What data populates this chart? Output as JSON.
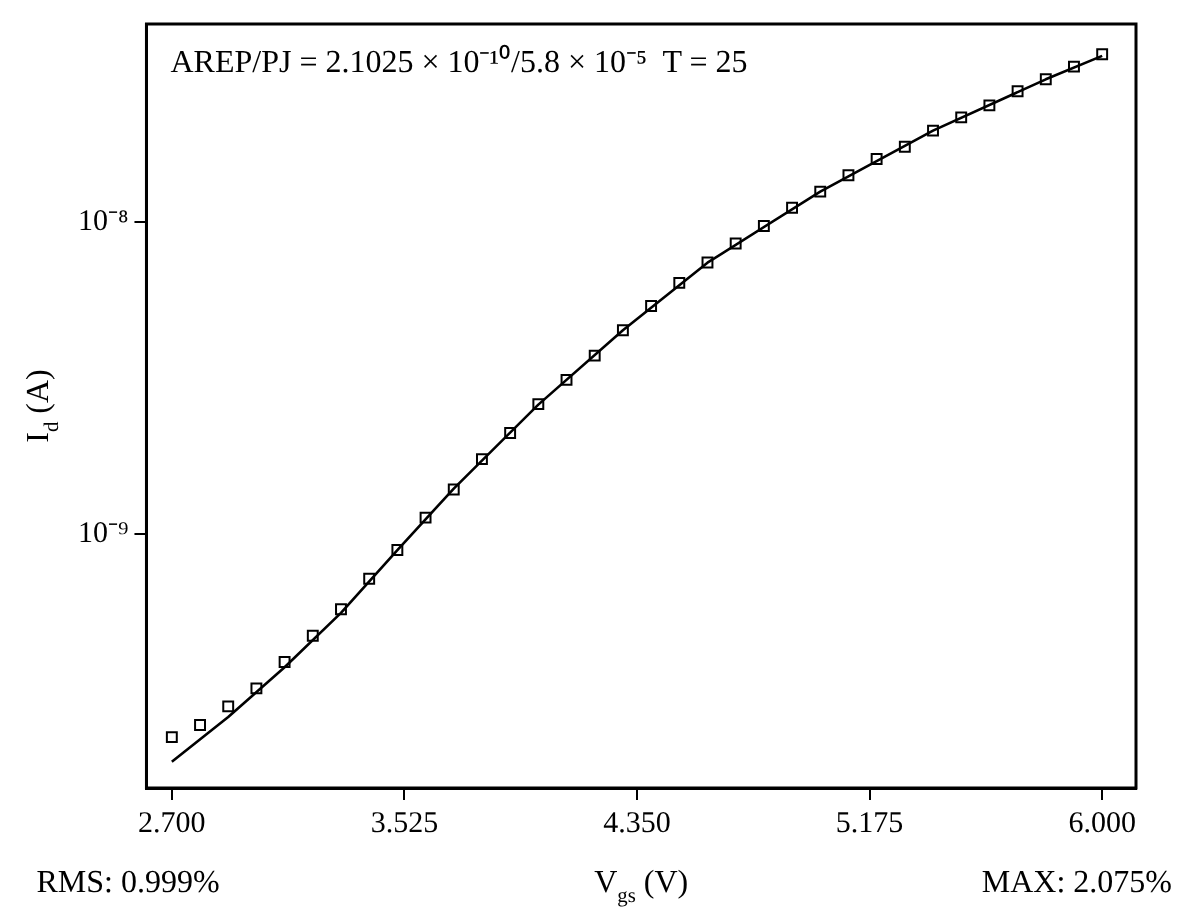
{
  "chart_data": {
    "type": "scatter",
    "xlabel": "V$_{gs}$ (V)",
    "ylabel": "I$_{d}$ (A)",
    "annotations": [
      "AREP/PJ = 2.1025 × 10⁻¹⁰/5.8 × 10⁻⁵  T = 25",
      "RMS: 0.999%",
      "MAX: 2.075%"
    ],
    "x": [
      2.7,
      2.8,
      2.9,
      3.0,
      3.1,
      3.2,
      3.3,
      3.4,
      3.5,
      3.6,
      3.7,
      3.8,
      3.9,
      4.0,
      4.1,
      4.2,
      4.3,
      4.4,
      4.5,
      4.6,
      4.7,
      4.8,
      4.9,
      5.0,
      5.1,
      5.2,
      5.3,
      5.4,
      5.5,
      5.6,
      5.7,
      5.8,
      5.9,
      6.0
    ],
    "series": [
      {
        "color": "#000000",
        "marker": "square",
        "values": [
          2.24e-10,
          2.45e-10,
          2.81e-10,
          3.21e-10,
          3.9e-10,
          4.73e-10,
          5.75e-10,
          7.2e-10,
          8.9e-10,
          1.13e-09,
          1.39e-09,
          1.74e-09,
          2.11e-09,
          2.61e-09,
          3.12e-09,
          3.73e-09,
          4.5e-09,
          5.38e-09,
          6.38e-09,
          7.41e-09,
          8.53e-09,
          9.7e-09,
          1.11e-08,
          1.25e-08,
          1.41e-08,
          1.59e-08,
          1.74e-08,
          1.96e-08,
          2.16e-08,
          2.36e-08,
          2.62e-08,
          2.86e-08,
          3.14e-08,
          3.44e-08
        ]
      },
      {
        "type": "line",
        "color": "#000000",
        "marker": "none",
        "line_style": "solid",
        "x": [
          2.7,
          2.9,
          3.1,
          3.3,
          3.5,
          3.7,
          4.0,
          4.3,
          4.6,
          5.0,
          5.4,
          5.8,
          6.0
        ],
        "values": [
          1.87e-10,
          2.6e-10,
          3.75e-10,
          5.6e-10,
          8.9e-10,
          1.4e-09,
          2.6e-09,
          4.5e-09,
          7.4e-09,
          1.25e-08,
          1.96e-08,
          2.86e-08,
          3.4e-08
        ]
      }
    ],
    "xlim": [
      2.61,
      6.12
    ],
    "xticks": [
      {
        "value": 2.7,
        "label": "2.700"
      },
      {
        "value": 3.525,
        "label": "3.525"
      },
      {
        "value": 4.35,
        "label": "4.350"
      },
      {
        "value": 5.175,
        "label": "5.175"
      },
      {
        "value": 6.0,
        "label": "6.000"
      }
    ],
    "ylim": [
      1.54e-10,
      4.3e-08
    ],
    "yticks": [
      {
        "value": 1e-09,
        "label": "10⁻⁹"
      },
      {
        "value": 1e-08,
        "label": "10⁻⁸"
      }
    ],
    "log": "y",
    "grid": false,
    "legend": false
  }
}
